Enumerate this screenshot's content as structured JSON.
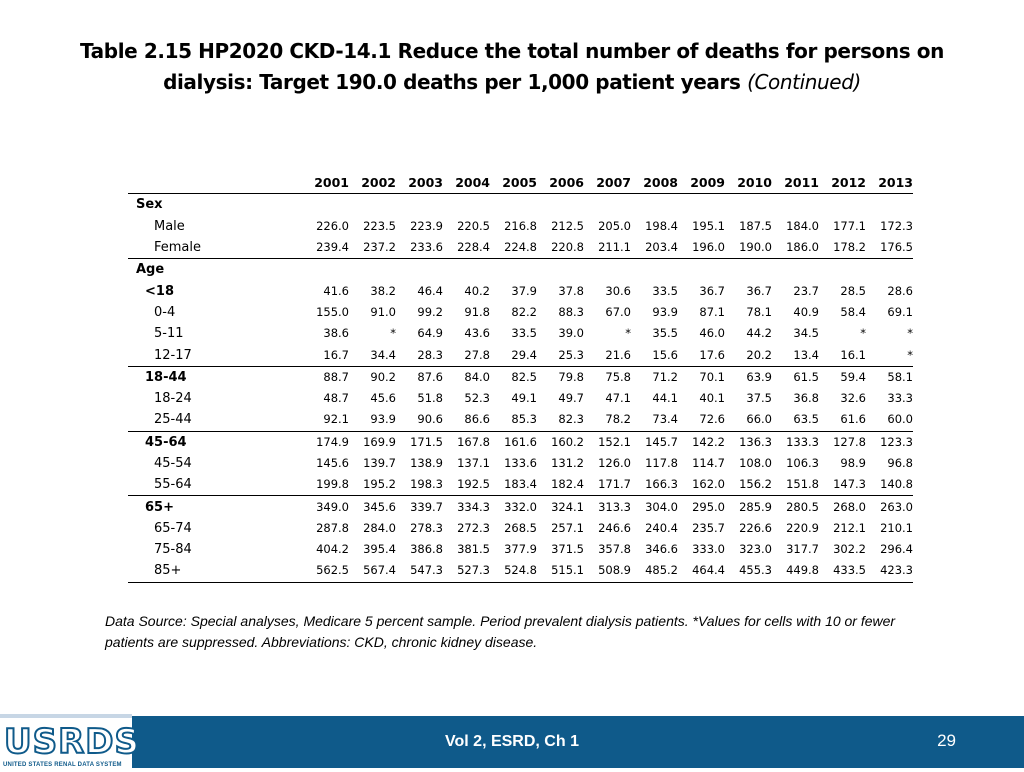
{
  "title": {
    "main": "Table 2.15  HP2020 CKD-14.1 Reduce the total number of deaths for persons on dialysis: Target 190.0 deaths per 1,000 patient years",
    "continued": "(Continued)"
  },
  "table": {
    "years": [
      "2001",
      "2002",
      "2003",
      "2004",
      "2005",
      "2006",
      "2007",
      "2008",
      "2009",
      "2010",
      "2011",
      "2012",
      "2013"
    ],
    "rows": [
      {
        "label": "Sex",
        "type": "sec",
        "values": []
      },
      {
        "label": "Male",
        "type": "sub",
        "values": [
          "226.0",
          "223.5",
          "223.9",
          "220.5",
          "216.8",
          "212.5",
          "205.0",
          "198.4",
          "195.1",
          "187.5",
          "184.0",
          "177.1",
          "172.3"
        ]
      },
      {
        "label": "Female",
        "type": "sub end",
        "values": [
          "239.4",
          "237.2",
          "233.6",
          "228.4",
          "224.8",
          "220.8",
          "211.1",
          "203.4",
          "196.0",
          "190.0",
          "186.0",
          "178.2",
          "176.5"
        ]
      },
      {
        "label": "Age",
        "type": "sec",
        "values": []
      },
      {
        "label": "<18",
        "type": "grp",
        "values": [
          "41.6",
          "38.2",
          "46.4",
          "40.2",
          "37.9",
          "37.8",
          "30.6",
          "33.5",
          "36.7",
          "36.7",
          "23.7",
          "28.5",
          "28.6"
        ]
      },
      {
        "label": "0-4",
        "type": "sub",
        "values": [
          "155.0",
          "91.0",
          "99.2",
          "91.8",
          "82.2",
          "88.3",
          "67.0",
          "93.9",
          "87.1",
          "78.1",
          "40.9",
          "58.4",
          "69.1"
        ]
      },
      {
        "label": "5-11",
        "type": "sub",
        "values": [
          "38.6",
          "*",
          "64.9",
          "43.6",
          "33.5",
          "39.0",
          "*",
          "35.5",
          "46.0",
          "44.2",
          "34.5",
          "*",
          "*"
        ]
      },
      {
        "label": "12-17",
        "type": "sub end",
        "values": [
          "16.7",
          "34.4",
          "28.3",
          "27.8",
          "29.4",
          "25.3",
          "21.6",
          "15.6",
          "17.6",
          "20.2",
          "13.4",
          "16.1",
          "*"
        ]
      },
      {
        "label": "18-44",
        "type": "grp",
        "values": [
          "88.7",
          "90.2",
          "87.6",
          "84.0",
          "82.5",
          "79.8",
          "75.8",
          "71.2",
          "70.1",
          "63.9",
          "61.5",
          "59.4",
          "58.1"
        ]
      },
      {
        "label": "18-24",
        "type": "sub",
        "values": [
          "48.7",
          "45.6",
          "51.8",
          "52.3",
          "49.1",
          "49.7",
          "47.1",
          "44.1",
          "40.1",
          "37.5",
          "36.8",
          "32.6",
          "33.3"
        ]
      },
      {
        "label": "25-44",
        "type": "sub end",
        "values": [
          "92.1",
          "93.9",
          "90.6",
          "86.6",
          "85.3",
          "82.3",
          "78.2",
          "73.4",
          "72.6",
          "66.0",
          "63.5",
          "61.6",
          "60.0"
        ]
      },
      {
        "label": "45-64",
        "type": "grp",
        "values": [
          "174.9",
          "169.9",
          "171.5",
          "167.8",
          "161.6",
          "160.2",
          "152.1",
          "145.7",
          "142.2",
          "136.3",
          "133.3",
          "127.8",
          "123.3"
        ]
      },
      {
        "label": "45-54",
        "type": "sub",
        "values": [
          "145.6",
          "139.7",
          "138.9",
          "137.1",
          "133.6",
          "131.2",
          "126.0",
          "117.8",
          "114.7",
          "108.0",
          "106.3",
          "98.9",
          "96.8"
        ]
      },
      {
        "label": "55-64",
        "type": "sub end",
        "values": [
          "199.8",
          "195.2",
          "198.3",
          "192.5",
          "183.4",
          "182.4",
          "171.7",
          "166.3",
          "162.0",
          "156.2",
          "151.8",
          "147.3",
          "140.8"
        ]
      },
      {
        "label": "65+",
        "type": "grp",
        "values": [
          "349.0",
          "345.6",
          "339.7",
          "334.3",
          "332.0",
          "324.1",
          "313.3",
          "304.0",
          "295.0",
          "285.9",
          "280.5",
          "268.0",
          "263.0"
        ]
      },
      {
        "label": "65-74",
        "type": "sub",
        "values": [
          "287.8",
          "284.0",
          "278.3",
          "272.3",
          "268.5",
          "257.1",
          "246.6",
          "240.4",
          "235.7",
          "226.6",
          "220.9",
          "212.1",
          "210.1"
        ]
      },
      {
        "label": "75-84",
        "type": "sub",
        "values": [
          "404.2",
          "395.4",
          "386.8",
          "381.5",
          "377.9",
          "371.5",
          "357.8",
          "346.6",
          "333.0",
          "323.0",
          "317.7",
          "302.2",
          "296.4"
        ]
      },
      {
        "label": "85+",
        "type": "sub end",
        "values": [
          "562.5",
          "567.4",
          "547.3",
          "527.3",
          "524.8",
          "515.1",
          "508.9",
          "485.2",
          "464.4",
          "455.3",
          "449.8",
          "433.5",
          "423.3"
        ]
      }
    ]
  },
  "source_note": "Data Source: Special analyses, Medicare 5 percent sample. Period prevalent dialysis patients. *Values for cells with 10 or fewer patients are suppressed. Abbreviations: CKD, chronic kidney disease.",
  "footer": {
    "logo_word": "USRDS",
    "logo_tagline": "UNITED STATES RENAL DATA SYSTEM",
    "volume": "Vol 2, ESRD, Ch 1",
    "page": "29",
    "bar_color": "#0f5a8a"
  }
}
